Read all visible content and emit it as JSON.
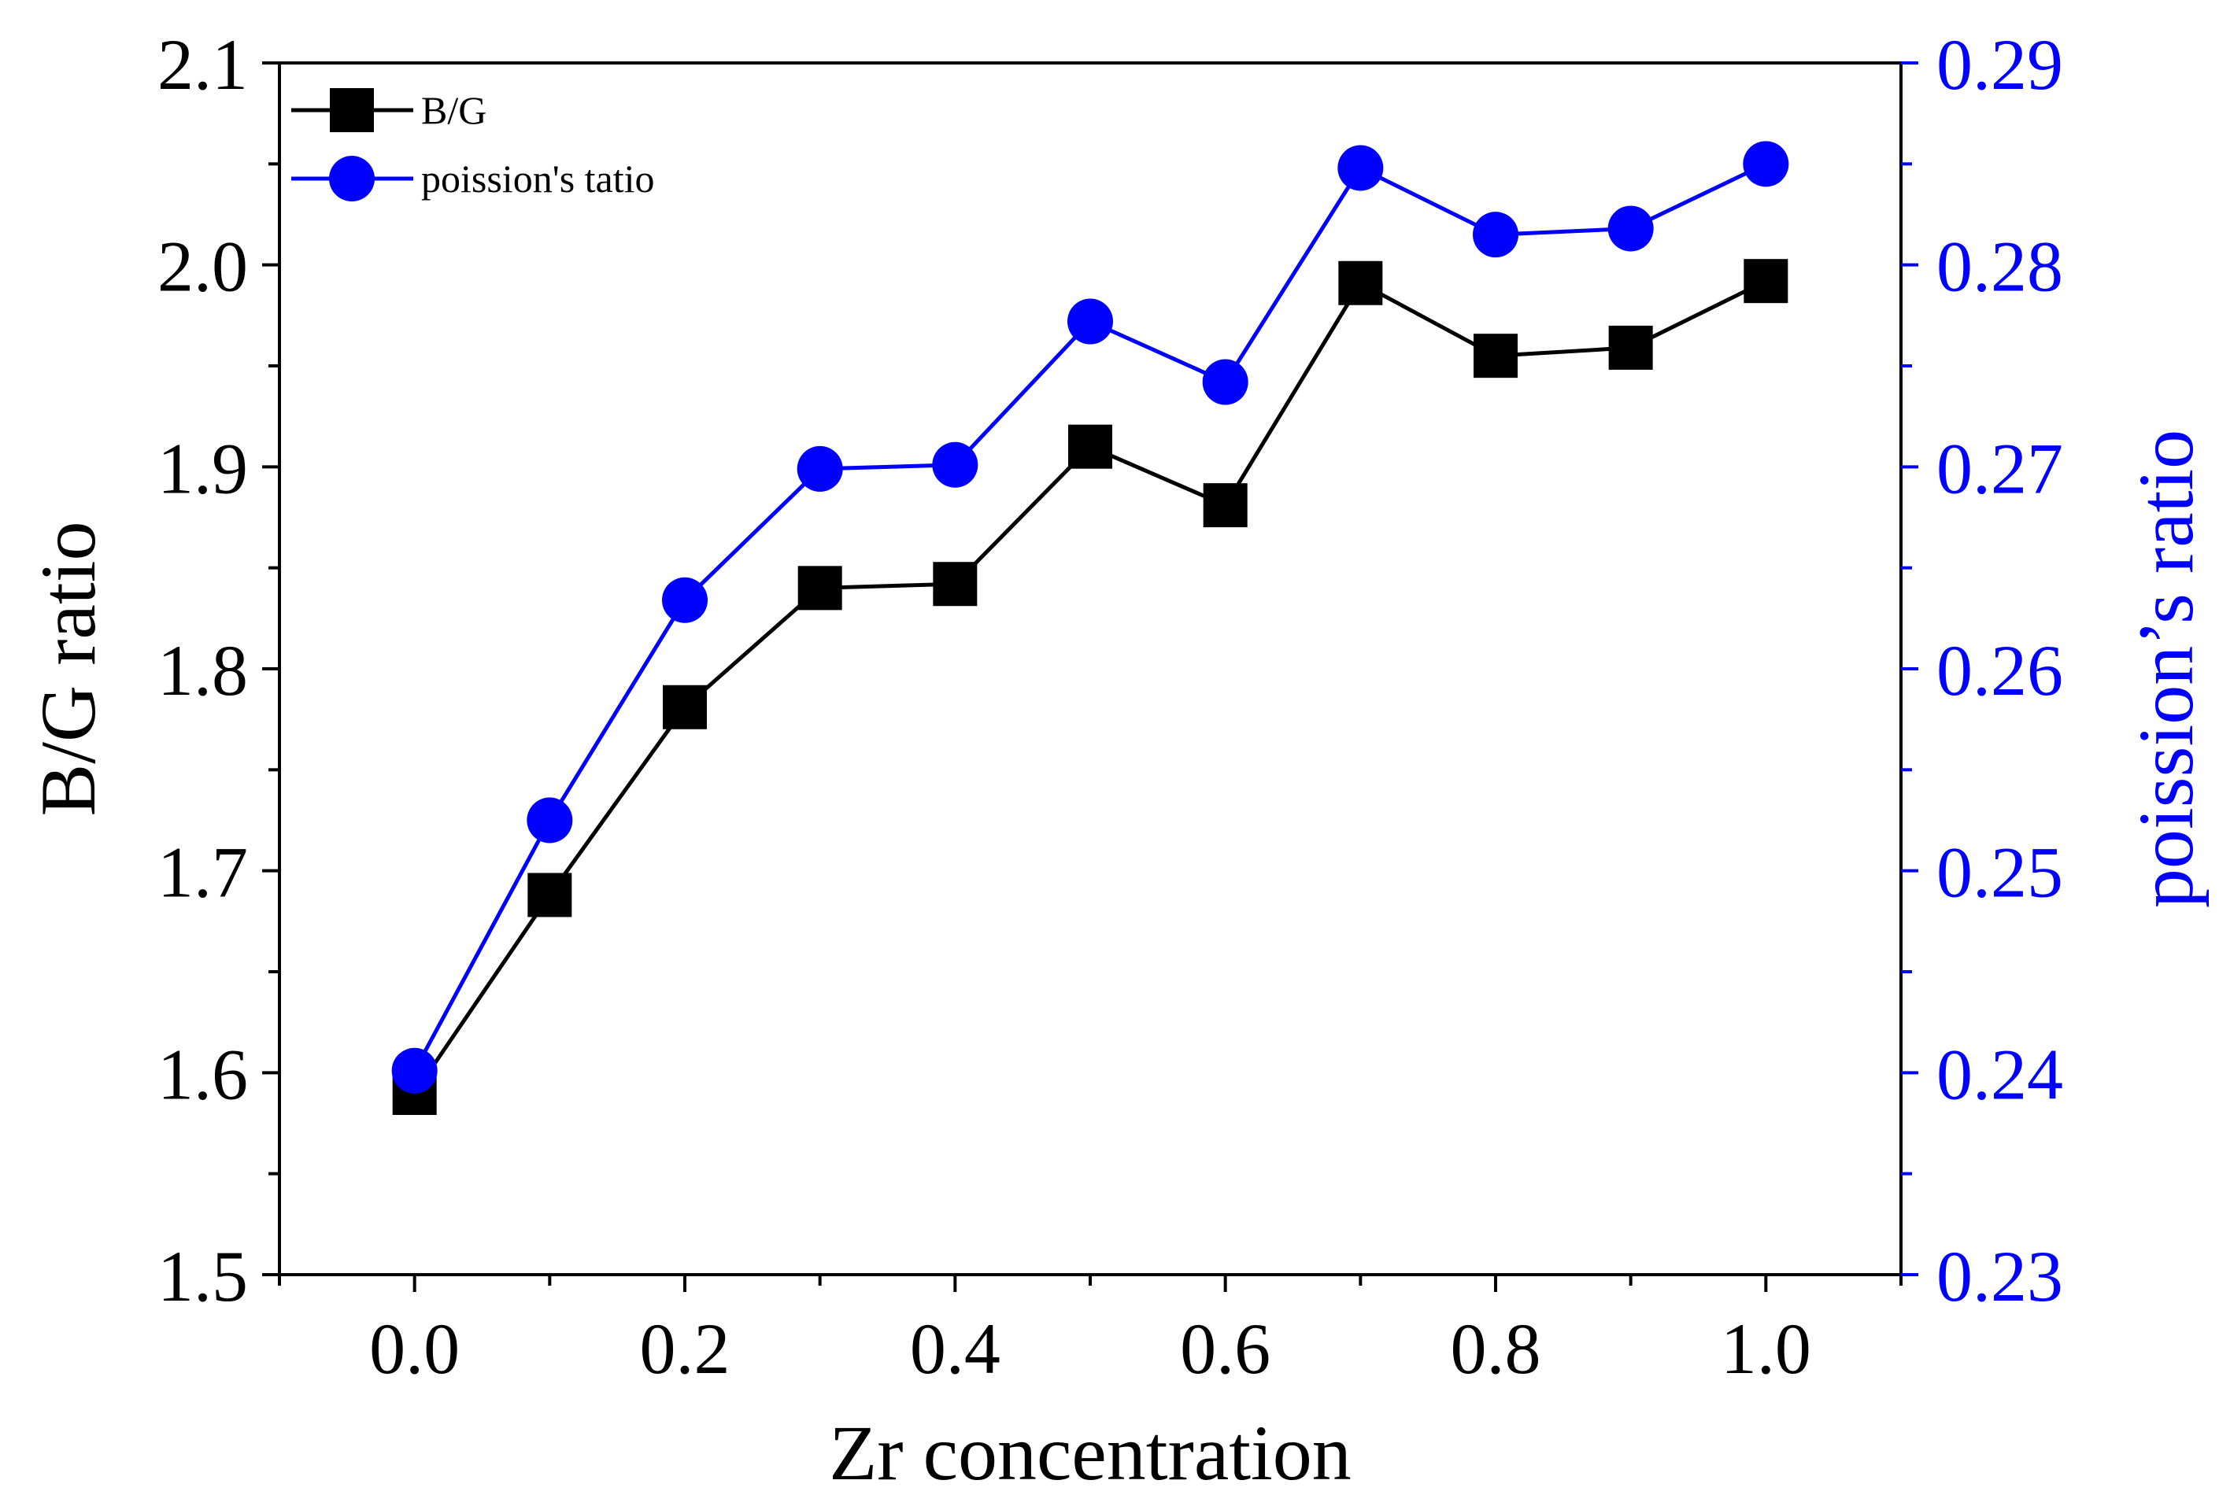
{
  "chart_data": {
    "type": "line",
    "x": [
      0.0,
      0.1,
      0.2,
      0.3,
      0.4,
      0.5,
      0.6,
      0.7,
      0.8,
      0.9,
      1.0
    ],
    "xlabel": "Zr concentration",
    "xlim": [
      -0.1,
      1.1
    ],
    "xticks": [
      "0.0",
      "0.2",
      "0.4",
      "0.6",
      "0.8",
      "1.0"
    ],
    "ylabel": "B/G ratio",
    "ylim": [
      1.5,
      2.1
    ],
    "yticks": [
      "1.5",
      "1.6",
      "1.7",
      "1.8",
      "1.9",
      "2.0",
      "2.1"
    ],
    "y2label": "poission’s ratio",
    "y2lim": [
      0.23,
      0.29
    ],
    "y2ticks": [
      "0.23",
      "0.24",
      "0.25",
      "0.26",
      "0.27",
      "0.28",
      "0.29"
    ],
    "series": [
      {
        "name": "B/G",
        "axis": "left",
        "marker": "square",
        "color": "#000000",
        "values": [
          1.59,
          1.688,
          1.781,
          1.84,
          1.842,
          1.91,
          1.881,
          1.991,
          1.955,
          1.959,
          1.992
        ]
      },
      {
        "name": "poission's tatio",
        "axis": "right",
        "marker": "circle",
        "color": "#0000ff",
        "values": [
          0.2401,
          0.2525,
          0.2634,
          0.2699,
          0.2701,
          0.2772,
          0.2742,
          0.2848,
          0.2815,
          0.2818,
          0.285
        ]
      }
    ],
    "legend_position": "top-left"
  }
}
